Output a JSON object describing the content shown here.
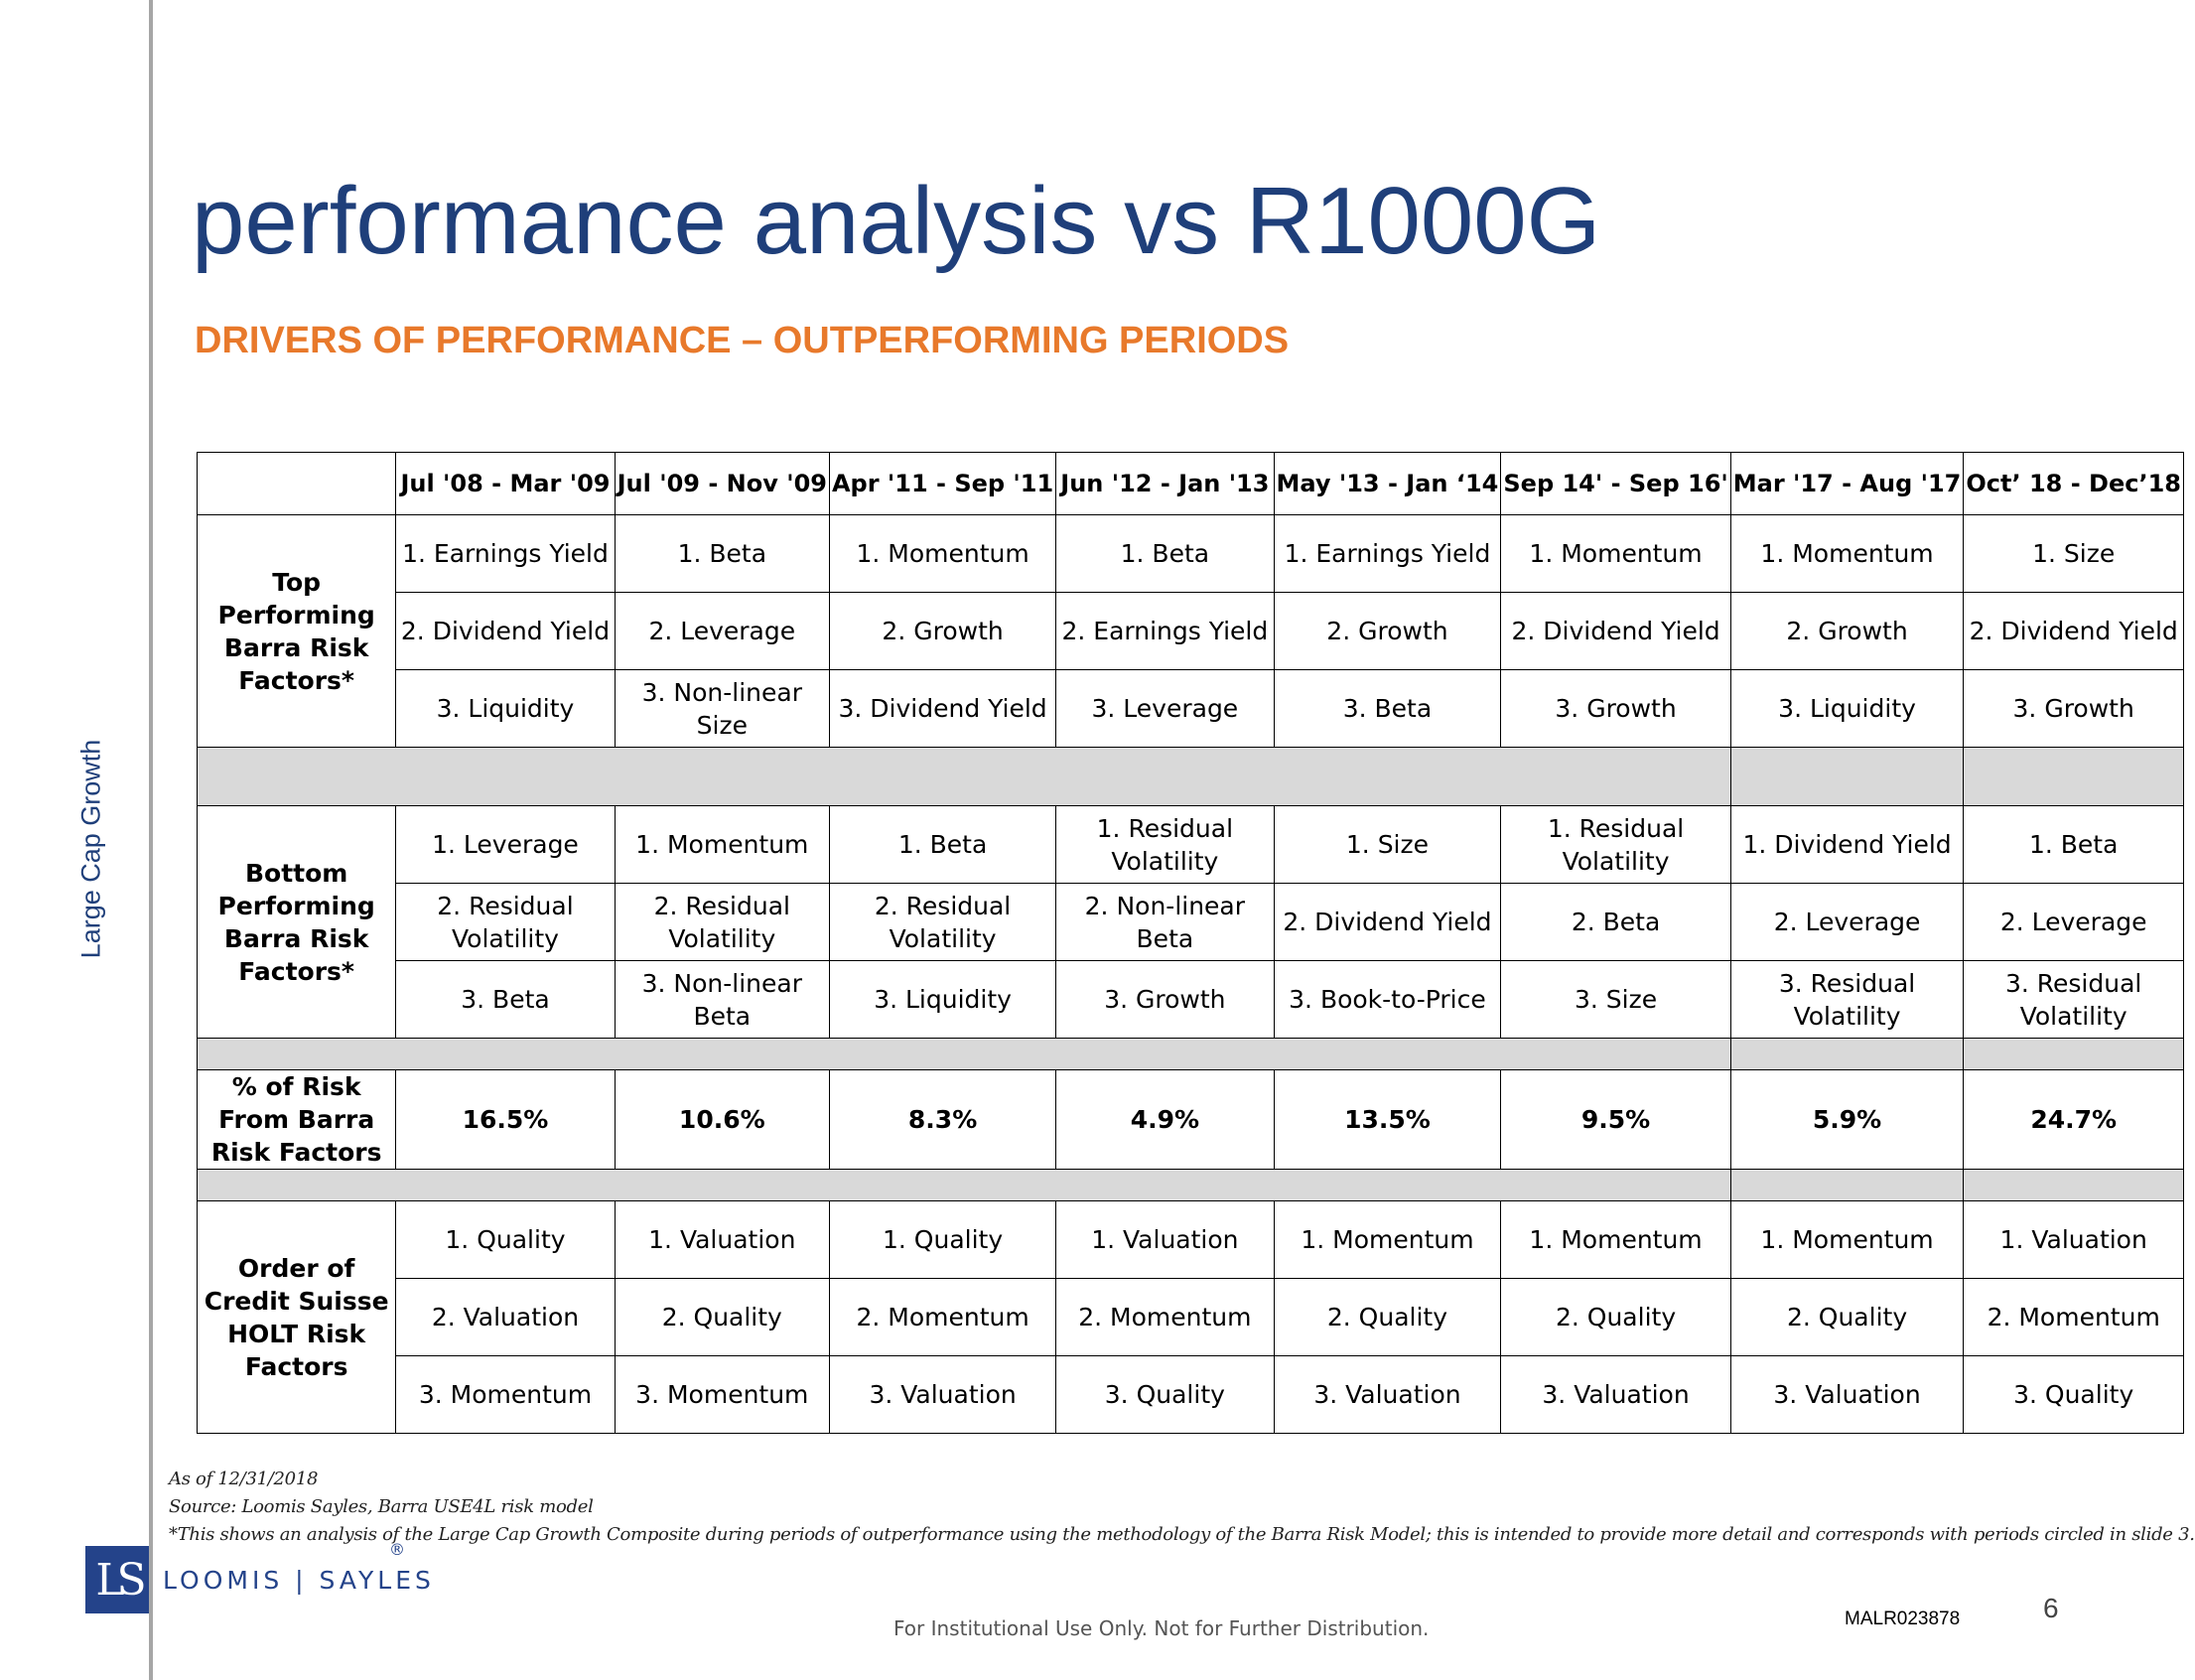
{
  "side_label": "Large Cap Growth",
  "title": "performance analysis vs R1000G",
  "subtitle": "DRIVERS OF PERFORMANCE – OUTPERFORMING PERIODS",
  "table": {
    "periods": [
      "Jul '08 - Mar '09",
      "Jul '09 - Nov '09",
      "Apr '11 - Sep '11",
      "Jun '12 - Jan '13",
      "May '13 - Jan ‘14",
      "Sep 14' - Sep 16'",
      "Mar '17 - Aug '17",
      "Oct’ 18 - Dec’18"
    ],
    "top_label": "Top Performing Barra Risk Factors*",
    "top_rows": [
      [
        "1. Earnings Yield",
        "1. Beta",
        "1. Momentum",
        "1. Beta",
        "1. Earnings Yield",
        "1. Momentum",
        "1. Momentum",
        "1. Size"
      ],
      [
        "2. Dividend Yield",
        "2. Leverage",
        "2. Growth",
        "2. Earnings Yield",
        "2. Growth",
        "2. Dividend Yield",
        "2. Growth",
        "2. Dividend Yield"
      ],
      [
        "3. Liquidity",
        "3. Non-linear Size",
        "3. Dividend Yield",
        "3. Leverage",
        "3. Beta",
        "3. Growth",
        "3. Liquidity",
        "3. Growth"
      ]
    ],
    "bottom_label": "Bottom Performing Barra Risk Factors*",
    "bottom_rows": [
      [
        "1. Leverage",
        "1. Momentum",
        "1. Beta",
        "1. Residual Volatility",
        "1. Size",
        "1. Residual Volatility",
        "1. Dividend Yield",
        "1. Beta"
      ],
      [
        "2. Residual Volatility",
        "2. Residual Volatility",
        "2. Residual Volatility",
        "2. Non-linear Beta",
        "2. Dividend Yield",
        "2. Beta",
        "2. Leverage",
        "2. Leverage"
      ],
      [
        "3. Beta",
        "3. Non-linear Beta",
        "3. Liquidity",
        "3. Growth",
        "3. Book-to-Price",
        "3. Size",
        "3. Residual Volatility",
        "3. Residual Volatility"
      ]
    ],
    "risk_label": "% of Risk From Barra Risk Factors",
    "risk_values": [
      "16.5%",
      "10.6%",
      "8.3%",
      "4.9%",
      "13.5%",
      "9.5%",
      "5.9%",
      "24.7%"
    ],
    "holt_label": "Order of Credit Suisse HOLT Risk Factors",
    "holt_rows": [
      [
        "1. Quality",
        "1. Valuation",
        "1. Quality",
        "1. Valuation",
        "1. Momentum",
        "1. Momentum",
        "1. Momentum",
        "1. Valuation"
      ],
      [
        "2. Valuation",
        "2. Quality",
        "2. Momentum",
        "2. Momentum",
        "2. Quality",
        "2. Quality",
        "2. Quality",
        "2. Momentum"
      ],
      [
        "3. Momentum",
        "3. Momentum",
        "3. Valuation",
        "3. Quality",
        "3. Valuation",
        "3. Valuation",
        "3. Valuation",
        "3. Quality"
      ]
    ]
  },
  "notes": {
    "as_of": "As of 12/31/2018",
    "source": "Source: Loomis Sayles, Barra USE4L risk model",
    "footnote": "*This shows an analysis of the Large Cap Growth Composite during periods of outperformance using the methodology of the Barra Risk Model; this is intended to provide more detail and corresponds with periods circled in slide 3."
  },
  "logo": {
    "mark": "LS",
    "text": "LOOMIS | SAYLES",
    "reg": "®"
  },
  "footer": "For Institutional Use Only. Not for Further Distribution.",
  "doc_id": "MALR023878",
  "page_number": "6"
}
